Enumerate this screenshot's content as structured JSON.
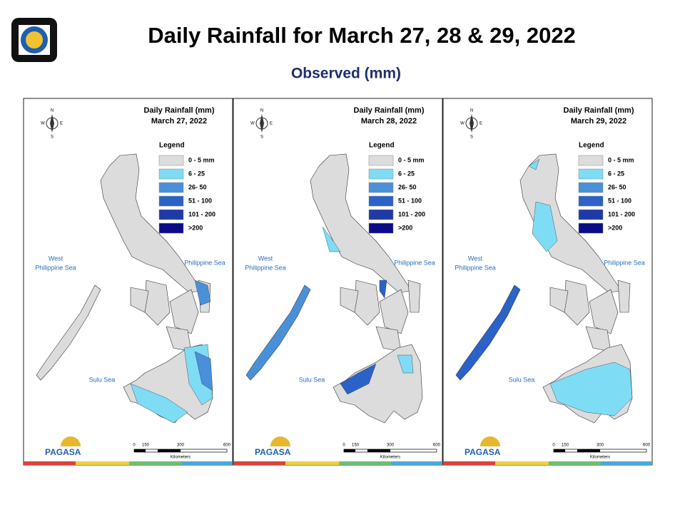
{
  "header": {
    "title": "Daily Rainfall for March 27, 28 & 29, 2022",
    "subtitle": "Observed (mm)"
  },
  "legend": {
    "title": "Legend",
    "items": [
      {
        "label": "0 - 5 mm",
        "color": "#dcdcdc"
      },
      {
        "label": "6 - 25",
        "color": "#7fdcf5"
      },
      {
        "label": "26- 50",
        "color": "#4a90d9"
      },
      {
        "label": "51 - 100",
        "color": "#2b62c8"
      },
      {
        "label": "101 - 200",
        "color": "#1f3aa8"
      },
      {
        "label": ">200",
        "color": "#0b0b8a"
      }
    ]
  },
  "map_labels": {
    "heading": "Daily Rainfall (mm)",
    "west_sea": [
      "West",
      "Philippine Sea"
    ],
    "east_sea": "Philippine Sea",
    "sulu_sea": "Sulu Sea",
    "compass": [
      "N",
      "S",
      "E",
      "W"
    ]
  },
  "scale": {
    "ticks": [
      "0",
      "150",
      "300",
      "600"
    ],
    "unit": "Kilometers"
  },
  "logo": {
    "text": "PAGASA"
  },
  "panels": [
    {
      "date": "March 27, 2022"
    },
    {
      "date": "March 28, 2022"
    },
    {
      "date": "March 29, 2022"
    }
  ]
}
